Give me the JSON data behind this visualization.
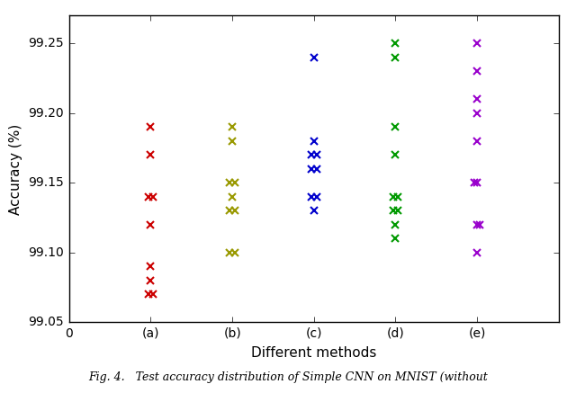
{
  "title": "",
  "xlabel": "Different methods",
  "ylabel": "Accuracy (%)",
  "xlim": [
    0,
    6
  ],
  "ylim": [
    99.05,
    99.27
  ],
  "yticks": [
    99.05,
    99.1,
    99.15,
    99.2,
    99.25
  ],
  "xticks": [
    0,
    1,
    2,
    3,
    4,
    5
  ],
  "xticklabels": [
    "0",
    "(a)",
    "(b)",
    "(c)",
    "(d)",
    "(e)"
  ],
  "groups": {
    "a": {
      "color": "#cc0000",
      "points_x": [
        1.0,
        1.0,
        0.97,
        1.03,
        1.0,
        1.0,
        1.0,
        0.97,
        1.03
      ],
      "points_y": [
        99.19,
        99.17,
        99.14,
        99.14,
        99.12,
        99.09,
        99.08,
        99.07,
        99.07
      ]
    },
    "b": {
      "color": "#999900",
      "points_x": [
        2.0,
        2.0,
        1.97,
        2.03,
        2.0,
        1.97,
        2.03,
        1.97,
        2.03
      ],
      "points_y": [
        99.19,
        99.18,
        99.15,
        99.15,
        99.14,
        99.13,
        99.13,
        99.1,
        99.1
      ]
    },
    "c": {
      "color": "#0000cc",
      "points_x": [
        3.0,
        3.0,
        2.97,
        3.03,
        2.97,
        3.03,
        2.97,
        3.03,
        3.0
      ],
      "points_y": [
        99.24,
        99.18,
        99.17,
        99.17,
        99.16,
        99.16,
        99.14,
        99.14,
        99.13
      ]
    },
    "d": {
      "color": "#009900",
      "points_x": [
        4.0,
        4.0,
        4.0,
        4.0,
        3.97,
        4.03,
        3.97,
        4.03,
        4.0,
        4.0
      ],
      "points_y": [
        99.25,
        99.24,
        99.19,
        99.17,
        99.14,
        99.14,
        99.13,
        99.13,
        99.12,
        99.11
      ]
    },
    "e": {
      "color": "#9900cc",
      "points_x": [
        5.0,
        5.0,
        5.0,
        5.0,
        5.0,
        5.0,
        4.97,
        5.03,
        5.0,
        5.0
      ],
      "points_y": [
        99.25,
        99.23,
        99.21,
        99.2,
        99.18,
        99.15,
        99.15,
        99.12,
        99.12,
        99.1
      ]
    }
  },
  "background_color": "#ffffff",
  "marker": "x",
  "markersize": 6,
  "markeredgewidth": 1.5,
  "caption": "Fig. 4.   Test accuracy distribution of Simple CNN on MNIST (without",
  "caption_fontsize": 9,
  "xlabel_fontsize": 11,
  "ylabel_fontsize": 11,
  "tick_fontsize": 10
}
